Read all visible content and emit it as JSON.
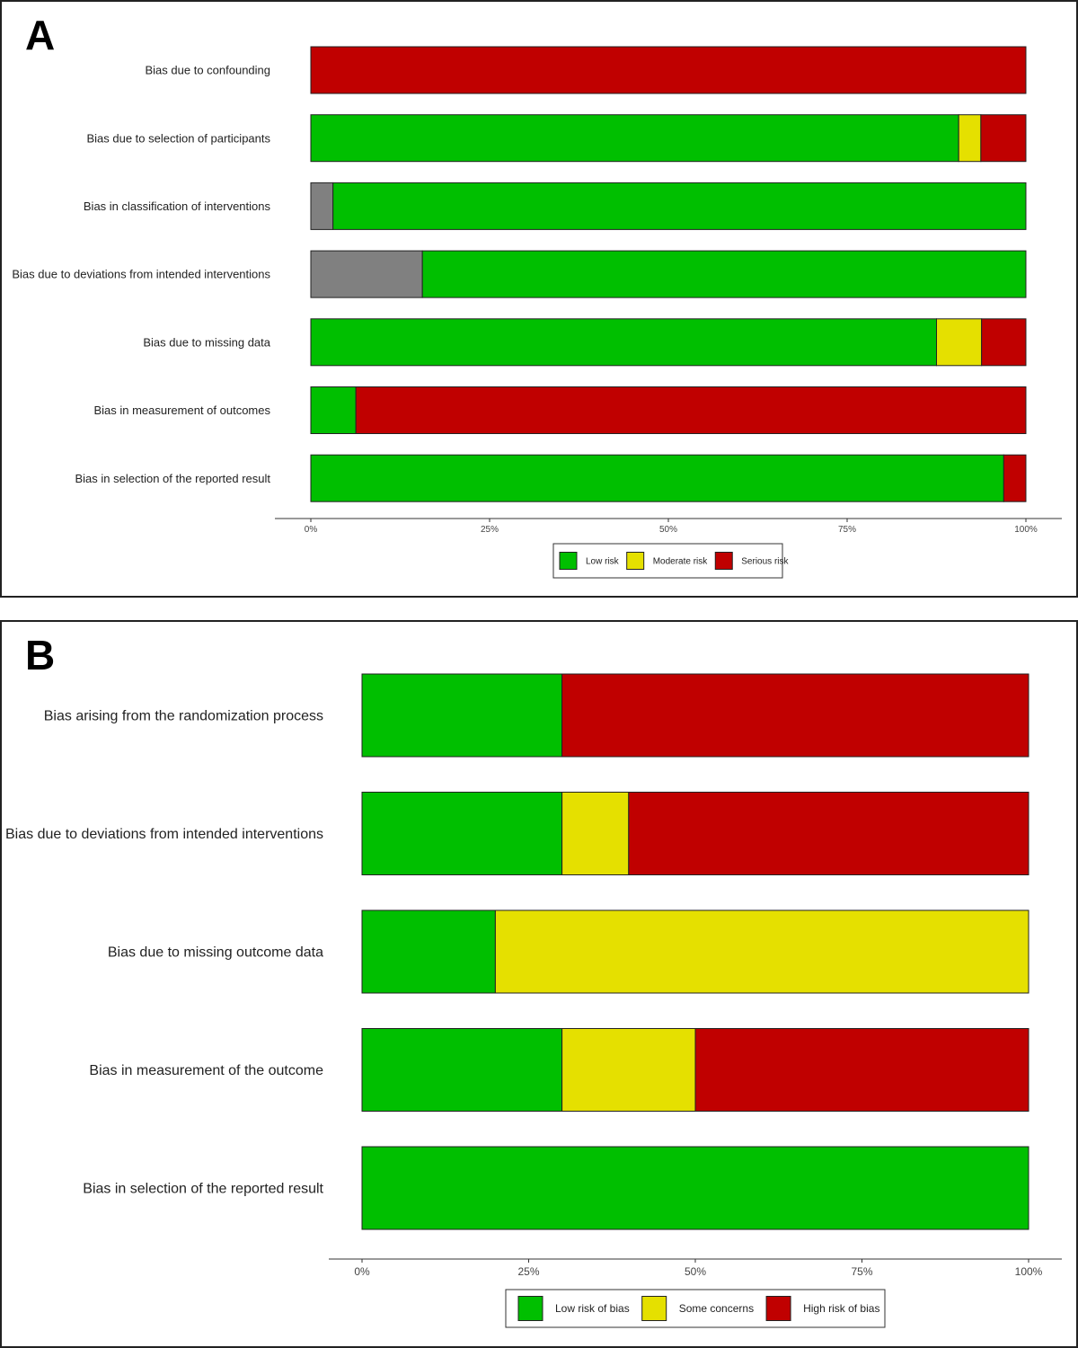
{
  "panels": [
    {
      "letter": "A",
      "chart_data": {
        "type": "bar",
        "orientation": "horizontal",
        "stacked": true,
        "percent": true,
        "categories": [
          "Bias due to confounding",
          "Bias due to selection of participants",
          "Bias in classification of interventions",
          "Bias due to deviations from intended interventions",
          "Bias due to missing data",
          "Bias in measurement of outcomes",
          "Bias in selection of the reported result"
        ],
        "series": [
          {
            "name": "Low risk",
            "color": "#00bf00",
            "values": [
              0,
              90.6,
              96.9,
              84.4,
              87.5,
              6.3,
              96.9
            ]
          },
          {
            "name": "Moderate risk",
            "color": "#e5e000",
            "values": [
              0,
              3.1,
              0,
              0,
              6.3,
              0,
              0
            ]
          },
          {
            "name": "Serious risk",
            "color": "#c00000",
            "values": [
              100,
              6.3,
              0,
              0,
              6.2,
              93.7,
              3.1
            ]
          },
          {
            "color": "#808080",
            "values": [
              0,
              0,
              3.1,
              15.6,
              0,
              0,
              0
            ]
          }
        ],
        "segment_order": [
          3,
          0,
          1,
          2
        ],
        "x_ticks": [
          "0%",
          "25%",
          "50%",
          "75%",
          "100%"
        ],
        "xlim": [
          0,
          100
        ],
        "legend_position": "bottom",
        "legend_series": [
          0,
          1,
          2
        ]
      }
    },
    {
      "letter": "B",
      "chart_data": {
        "type": "bar",
        "orientation": "horizontal",
        "stacked": true,
        "percent": true,
        "categories": [
          "Bias arising from the randomization process",
          "Bias due to deviations from intended interventions",
          "Bias due to missing outcome data",
          "Bias in measurement of the outcome",
          "Bias in selection of the reported result"
        ],
        "series": [
          {
            "name": "Low risk of bias",
            "color": "#00bf00",
            "values": [
              30,
              30,
              20,
              30,
              100
            ]
          },
          {
            "name": "Some concerns",
            "color": "#e5e000",
            "values": [
              0,
              10,
              80,
              20,
              0
            ]
          },
          {
            "name": "High risk of bias",
            "color": "#c00000",
            "values": [
              70,
              60,
              0,
              50,
              0
            ]
          }
        ],
        "segment_order": [
          0,
          1,
          2
        ],
        "x_ticks": [
          "0%",
          "25%",
          "50%",
          "75%",
          "100%"
        ],
        "xlim": [
          0,
          100
        ],
        "legend_position": "bottom",
        "legend_series": [
          0,
          1,
          2
        ]
      }
    }
  ]
}
